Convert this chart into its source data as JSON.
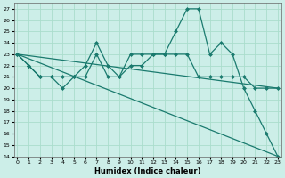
{
  "title": "",
  "xlabel": "Humidex (Indice chaleur)",
  "ylabel": "",
  "bg_color": "#cceee8",
  "grid_color": "#aaddcc",
  "line_color": "#1a7a6e",
  "ylim": [
    14,
    27.5
  ],
  "xlim": [
    -0.3,
    23.3
  ],
  "yticks": [
    14,
    15,
    16,
    17,
    18,
    19,
    20,
    21,
    22,
    23,
    24,
    25,
    26,
    27
  ],
  "xticks": [
    0,
    1,
    2,
    3,
    4,
    5,
    6,
    7,
    8,
    9,
    10,
    11,
    12,
    13,
    14,
    15,
    16,
    17,
    18,
    19,
    20,
    21,
    22,
    23
  ],
  "series": [
    {
      "x": [
        0,
        1,
        2,
        3,
        4,
        5,
        6,
        7,
        8,
        9,
        10,
        11,
        12,
        13,
        14,
        15,
        16,
        17,
        18,
        19,
        20,
        21,
        22,
        23
      ],
      "y": [
        23,
        22,
        21,
        21,
        20,
        21,
        22,
        24,
        22,
        21,
        23,
        23,
        23,
        23,
        25,
        27,
        27,
        23,
        24,
        23,
        20,
        18,
        16,
        14
      ],
      "marker": "D",
      "markersize": 2.0,
      "linewidth": 0.9
    },
    {
      "x": [
        0,
        1,
        2,
        3,
        4,
        5,
        6,
        7,
        8,
        9,
        10,
        11,
        12,
        13,
        14,
        15,
        16,
        17,
        18,
        19,
        20,
        21,
        22,
        23
      ],
      "y": [
        23,
        22,
        21,
        21,
        21,
        21,
        21,
        23,
        21,
        21,
        22,
        22,
        23,
        23,
        23,
        23,
        21,
        21,
        21,
        21,
        21,
        20,
        20,
        20
      ],
      "marker": "D",
      "markersize": 2.0,
      "linewidth": 0.9
    },
    {
      "x": [
        0,
        23
      ],
      "y": [
        23,
        20
      ],
      "marker": null,
      "markersize": 0,
      "linewidth": 0.9
    },
    {
      "x": [
        0,
        23
      ],
      "y": [
        23,
        14
      ],
      "marker": null,
      "markersize": 0,
      "linewidth": 0.9
    }
  ]
}
